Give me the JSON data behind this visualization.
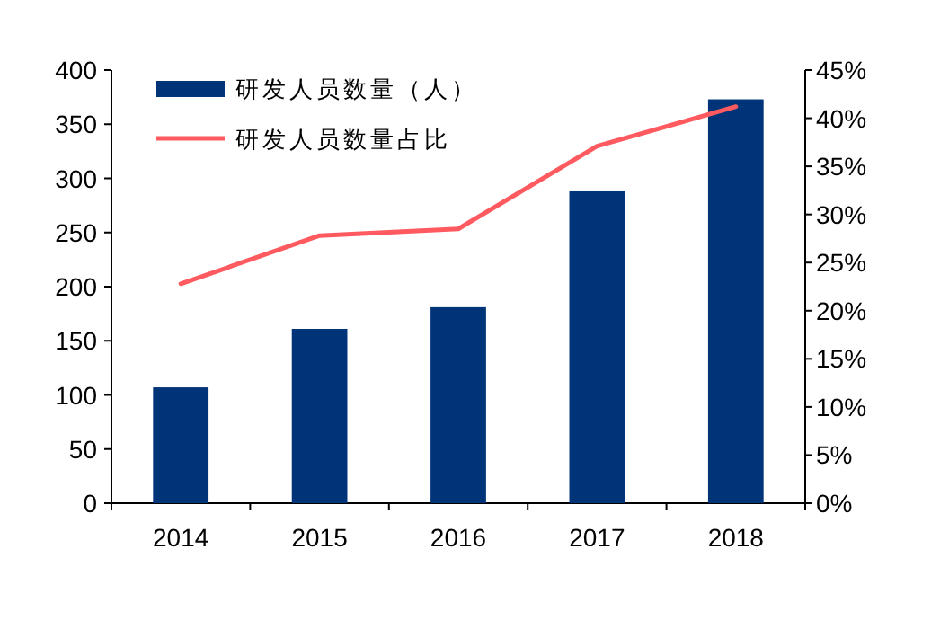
{
  "chart_data": {
    "type": "bar",
    "categories": [
      "2014",
      "2015",
      "2016",
      "2017",
      "2018"
    ],
    "series": [
      {
        "name": "研发人员数量（人）",
        "color": "#003478",
        "values": [
          107,
          161,
          181,
          288,
          373
        ]
      },
      {
        "name": "研发人员数量占比",
        "type": "line",
        "axis": "y2",
        "color": "#ff5a5f",
        "values": [
          22.8,
          27.8,
          28.5,
          37.1,
          41.2
        ]
      }
    ],
    "ylim": [
      0,
      400
    ],
    "yticks": [
      0,
      50,
      100,
      150,
      200,
      250,
      300,
      350,
      400
    ],
    "y2lim": [
      0,
      45
    ],
    "y2ticks": [
      {
        "value": 0,
        "label": "0%"
      },
      {
        "value": 5,
        "label": "5%"
      },
      {
        "value": 10,
        "label": "10%"
      },
      {
        "value": 15,
        "label": "15%"
      },
      {
        "value": 20,
        "label": "20%"
      },
      {
        "value": 25,
        "label": "25%"
      },
      {
        "value": 30,
        "label": "30%"
      },
      {
        "value": 35,
        "label": "35%"
      },
      {
        "value": 40,
        "label": "40%"
      },
      {
        "value": 45,
        "label": "45%"
      }
    ],
    "legend": "top left",
    "marker": "none",
    "line_style": "solid"
  }
}
